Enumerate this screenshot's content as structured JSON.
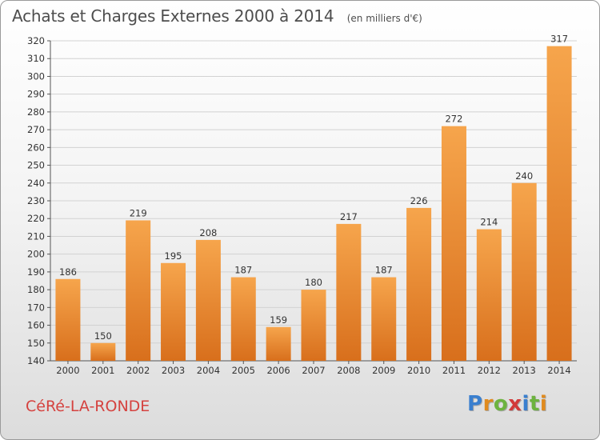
{
  "header": {
    "title": "Achats et Charges Externes 2000 à 2014",
    "unit": "(en milliers d'€)"
  },
  "footer": {
    "commune": "CéRé-LA-RONDE",
    "logo": "Proxiti"
  },
  "colors": {
    "bar_light": "#f6a54c",
    "bar_dark": "#d86f1c",
    "commune_text": "#d5423f",
    "logo_letters": [
      "#3a7fcf",
      "#e08a1e",
      "#6db33f",
      "#d23a3a",
      "#3a7fcf",
      "#6db33f",
      "#e08a1e"
    ]
  },
  "chart_data": {
    "type": "bar",
    "title": "Achats et Charges Externes 2000 à 2014",
    "subtitle": "(en milliers d'€)",
    "categories": [
      "2000",
      "2001",
      "2002",
      "2003",
      "2004",
      "2005",
      "2006",
      "2007",
      "2008",
      "2009",
      "2010",
      "2011",
      "2012",
      "2013",
      "2014"
    ],
    "values": [
      186,
      150,
      219,
      195,
      208,
      187,
      159,
      180,
      217,
      187,
      226,
      272,
      214,
      240,
      317
    ],
    "ylim": [
      140,
      320
    ],
    "yticks": [
      140,
      150,
      160,
      170,
      180,
      190,
      200,
      210,
      220,
      230,
      240,
      250,
      260,
      270,
      280,
      290,
      300,
      310,
      320
    ],
    "grid": true,
    "legend": "none"
  }
}
